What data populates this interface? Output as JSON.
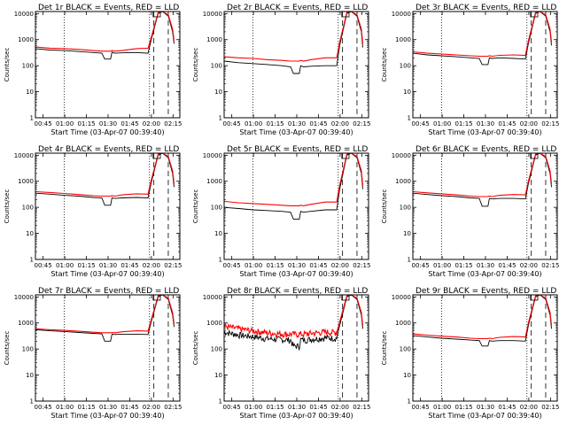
{
  "chart_data": {
    "type": "line",
    "layout": "3x3 grid",
    "y_scale": "log",
    "ylabel": "Counts/sec",
    "xlabel": "Start Time (03-Apr-07 00:39:40)",
    "x_unit": "minutes after 00:39:40",
    "x_range": [
      0,
      100
    ],
    "y_range": [
      1,
      12000
    ],
    "y_ticks": [
      {
        "value": 1,
        "label": "1"
      },
      {
        "value": 10,
        "label": "10"
      },
      {
        "value": 100,
        "label": "100"
      },
      {
        "value": 1000,
        "label": "1000"
      },
      {
        "value": 10000,
        "label": "10000"
      }
    ],
    "x_ticks": [
      {
        "value": 5.3,
        "label": "00:45"
      },
      {
        "value": 20.3,
        "label": "01:00"
      },
      {
        "value": 35.3,
        "label": "01:15"
      },
      {
        "value": 50.3,
        "label": "01:30"
      },
      {
        "value": 65.3,
        "label": "01:45"
      },
      {
        "value": 80.3,
        "label": "02:00"
      },
      {
        "value": 95.3,
        "label": "02:15"
      }
    ],
    "markers": {
      "dotted": [
        20,
        79
      ],
      "dashed": [
        82,
        92
      ],
      "box_x": [
        81.5,
        86.5
      ]
    },
    "series_legend": [
      {
        "name": "Events",
        "color": "#000000"
      },
      {
        "name": "LLD",
        "color": "#ff0000"
      }
    ],
    "panels": [
      {
        "title": "Det 1r BLACK = Events, RED = LLD",
        "series": [
          {
            "name": "Events",
            "color": "#000000",
            "x": [
              0,
              10,
              20,
              30,
              40,
              46,
              48,
              52,
              53,
              55,
              60,
              70,
              78,
              80,
              85,
              88,
              92,
              95,
              96
            ],
            "y": [
              450,
              400,
              380,
              350,
              320,
              300,
              180,
              180,
              330,
              300,
              310,
              320,
              300,
              900,
              10000,
              12000,
              8000,
              2000,
              700
            ]
          },
          {
            "name": "LLD",
            "color": "#ff0000",
            "x": [
              0,
              10,
              20,
              30,
              40,
              46,
              48,
              52,
              53,
              55,
              60,
              70,
              78,
              80,
              85,
              88,
              92,
              95,
              96
            ],
            "y": [
              520,
              470,
              450,
              420,
              380,
              360,
              360,
              360,
              380,
              360,
              380,
              450,
              470,
              1100,
              11000,
              12000,
              9000,
              2500,
              900
            ]
          }
        ]
      },
      {
        "title": "Det 2r BLACK = Events, RED = LLD",
        "series": [
          {
            "name": "Events",
            "color": "#000000",
            "x": [
              0,
              10,
              20,
              30,
              40,
              46,
              48,
              52,
              53,
              55,
              60,
              70,
              78,
              80,
              85,
              88,
              92,
              95,
              96
            ],
            "y": [
              150,
              130,
              120,
              110,
              100,
              90,
              50,
              50,
              100,
              90,
              95,
              100,
              100,
              600,
              10000,
              12000,
              8000,
              2000,
              500
            ]
          },
          {
            "name": "LLD",
            "color": "#ff0000",
            "x": [
              0,
              10,
              20,
              30,
              40,
              46,
              48,
              52,
              53,
              55,
              60,
              70,
              78,
              80,
              85,
              88,
              92,
              95,
              96
            ],
            "y": [
              220,
              200,
              190,
              170,
              160,
              150,
              150,
              150,
              160,
              150,
              170,
              200,
              200,
              800,
              11000,
              12000,
              9000,
              2500,
              700
            ]
          }
        ]
      },
      {
        "title": "Det 3r BLACK = Events, RED = LLD",
        "series": [
          {
            "name": "Events",
            "color": "#000000",
            "x": [
              0,
              10,
              20,
              30,
              40,
              46,
              48,
              52,
              53,
              55,
              60,
              70,
              78,
              80,
              85,
              88,
              92,
              95,
              96
            ],
            "y": [
              300,
              260,
              240,
              220,
              200,
              190,
              110,
              110,
              200,
              190,
              200,
              190,
              180,
              700,
              10000,
              12000,
              8000,
              2000,
              600
            ]
          },
          {
            "name": "LLD",
            "color": "#ff0000",
            "x": [
              0,
              10,
              20,
              30,
              40,
              46,
              48,
              52,
              53,
              55,
              60,
              70,
              78,
              80,
              85,
              88,
              92,
              95,
              96
            ],
            "y": [
              340,
              300,
              280,
              260,
              240,
              230,
              230,
              230,
              240,
              230,
              250,
              260,
              250,
              900,
              11000,
              12000,
              9000,
              2500,
              800
            ]
          }
        ]
      },
      {
        "title": "Det 4r BLACK = Events, RED = LLD",
        "series": [
          {
            "name": "Events",
            "color": "#000000",
            "x": [
              0,
              10,
              20,
              30,
              40,
              46,
              48,
              52,
              53,
              55,
              60,
              70,
              78,
              80,
              85,
              88,
              92,
              95,
              96
            ],
            "y": [
              350,
              320,
              290,
              270,
              240,
              230,
              120,
              120,
              230,
              220,
              230,
              240,
              230,
              800,
              10000,
              12000,
              8000,
              2000,
              600
            ]
          },
          {
            "name": "LLD",
            "color": "#ff0000",
            "x": [
              0,
              10,
              20,
              30,
              40,
              46,
              48,
              52,
              53,
              55,
              60,
              70,
              78,
              80,
              85,
              88,
              92,
              95,
              96
            ],
            "y": [
              400,
              370,
              340,
              310,
              280,
              270,
              270,
              270,
              280,
              270,
              300,
              330,
              320,
              1000,
              11000,
              12000,
              9000,
              2500,
              800
            ]
          }
        ]
      },
      {
        "title": "Det 5r BLACK = Events, RED = LLD",
        "series": [
          {
            "name": "Events",
            "color": "#000000",
            "x": [
              0,
              10,
              20,
              30,
              40,
              46,
              48,
              52,
              53,
              55,
              60,
              70,
              78,
              80,
              85,
              88,
              92,
              95,
              96
            ],
            "y": [
              100,
              90,
              80,
              75,
              70,
              65,
              35,
              35,
              70,
              65,
              70,
              80,
              80,
              500,
              10000,
              12000,
              8000,
              2000,
              500
            ]
          },
          {
            "name": "LLD",
            "color": "#ff0000",
            "x": [
              0,
              10,
              20,
              30,
              40,
              46,
              48,
              52,
              53,
              55,
              60,
              70,
              78,
              80,
              85,
              88,
              92,
              95,
              96
            ],
            "y": [
              170,
              150,
              140,
              130,
              120,
              115,
              115,
              115,
              120,
              115,
              130,
              160,
              160,
              700,
              11000,
              12000,
              9000,
              2500,
              700
            ]
          }
        ]
      },
      {
        "title": "Det 6r BLACK = Events, RED = LLD",
        "series": [
          {
            "name": "Events",
            "color": "#000000",
            "x": [
              0,
              10,
              20,
              30,
              40,
              46,
              48,
              52,
              53,
              55,
              60,
              70,
              78,
              80,
              85,
              88,
              92,
              95,
              96
            ],
            "y": [
              350,
              310,
              280,
              260,
              230,
              220,
              110,
              110,
              220,
              210,
              220,
              220,
              210,
              800,
              10000,
              12000,
              8000,
              2000,
              600
            ]
          },
          {
            "name": "LLD",
            "color": "#ff0000",
            "x": [
              0,
              10,
              20,
              30,
              40,
              46,
              48,
              52,
              53,
              55,
              60,
              70,
              78,
              80,
              85,
              88,
              92,
              95,
              96
            ],
            "y": [
              400,
              360,
              330,
              300,
              270,
              260,
              260,
              260,
              270,
              260,
              290,
              310,
              300,
              1000,
              11000,
              12000,
              9000,
              2500,
              800
            ]
          }
        ]
      },
      {
        "title": "Det 7r BLACK = Events, RED = LLD",
        "series": [
          {
            "name": "Events",
            "color": "#000000",
            "x": [
              0,
              10,
              20,
              30,
              40,
              46,
              48,
              52,
              53,
              55,
              60,
              70,
              78,
              80,
              85,
              88,
              92,
              95,
              96
            ],
            "y": [
              550,
              500,
              470,
              430,
              400,
              380,
              200,
              200,
              370,
              360,
              370,
              370,
              360,
              1000,
              10000,
              12000,
              8000,
              2000,
              700
            ]
          },
          {
            "name": "LLD",
            "color": "#ff0000",
            "x": [
              0,
              10,
              20,
              30,
              40,
              46,
              48,
              52,
              53,
              55,
              60,
              70,
              78,
              80,
              85,
              88,
              92,
              95,
              96
            ],
            "y": [
              600,
              550,
              520,
              480,
              440,
              420,
              420,
              420,
              430,
              420,
              460,
              500,
              490,
              1200,
              11000,
              12000,
              9000,
              2500,
              900
            ]
          }
        ]
      },
      {
        "title": "Det 8r BLACK = Events, RED = LLD",
        "noisy": true,
        "series": [
          {
            "name": "Events",
            "color": "#000000",
            "x": [
              0,
              10,
              20,
              30,
              40,
              46,
              48,
              52,
              53,
              55,
              60,
              70,
              78,
              80,
              85,
              88,
              92,
              95,
              96
            ],
            "y": [
              450,
              350,
              300,
              250,
              230,
              220,
              130,
              130,
              230,
              220,
              240,
              270,
              260,
              800,
              10000,
              12000,
              8000,
              2000,
              600
            ]
          },
          {
            "name": "LLD",
            "color": "#ff0000",
            "x": [
              0,
              10,
              20,
              30,
              40,
              46,
              48,
              52,
              53,
              55,
              60,
              70,
              78,
              80,
              85,
              88,
              92,
              95,
              96
            ],
            "y": [
              750,
              600,
              500,
              420,
              380,
              370,
              370,
              370,
              380,
              370,
              400,
              450,
              430,
              1100,
              11000,
              12000,
              9000,
              2500,
              800
            ]
          }
        ]
      },
      {
        "title": "Det 9r BLACK = Events, RED = LLD",
        "series": [
          {
            "name": "Events",
            "color": "#000000",
            "x": [
              0,
              10,
              20,
              30,
              40,
              46,
              48,
              52,
              53,
              55,
              60,
              70,
              78,
              80,
              85,
              88,
              92,
              95,
              96
            ],
            "y": [
              330,
              290,
              260,
              240,
              220,
              210,
              130,
              130,
              210,
              200,
              210,
              210,
              200,
              800,
              10000,
              12000,
              8000,
              2000,
              600
            ]
          },
          {
            "name": "LLD",
            "color": "#ff0000",
            "x": [
              0,
              10,
              20,
              30,
              40,
              46,
              48,
              52,
              53,
              55,
              60,
              70,
              78,
              80,
              85,
              88,
              92,
              95,
              96
            ],
            "y": [
              380,
              340,
              310,
              290,
              260,
              250,
              250,
              250,
              260,
              250,
              280,
              300,
              290,
              1000,
              11000,
              12000,
              9000,
              2500,
              800
            ]
          }
        ]
      }
    ]
  }
}
